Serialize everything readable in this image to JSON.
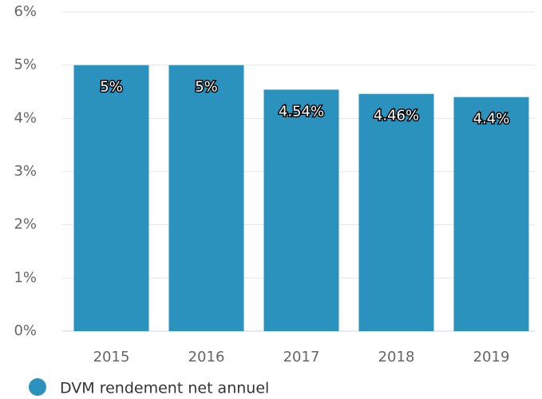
{
  "chart_data": {
    "type": "bar",
    "categories": [
      "2015",
      "2016",
      "2017",
      "2018",
      "2019"
    ],
    "series": [
      {
        "name": "DVM rendement net annuel",
        "color": "#2b91bd",
        "values": [
          5,
          5,
          4.54,
          4.46,
          4.4
        ],
        "value_labels": [
          "5%",
          "5%",
          "4.54%",
          "4.46%",
          "4.4%"
        ]
      }
    ],
    "ylim": [
      0,
      6
    ],
    "yticks": [
      {
        "value": 0,
        "label": "0%"
      },
      {
        "value": 1,
        "label": "1%"
      },
      {
        "value": 2,
        "label": "2%"
      },
      {
        "value": 3,
        "label": "3%"
      },
      {
        "value": 4,
        "label": "4%"
      },
      {
        "value": 5,
        "label": "5%"
      },
      {
        "value": 6,
        "label": "6%"
      }
    ],
    "grid": true,
    "legend": "bottom-left"
  }
}
